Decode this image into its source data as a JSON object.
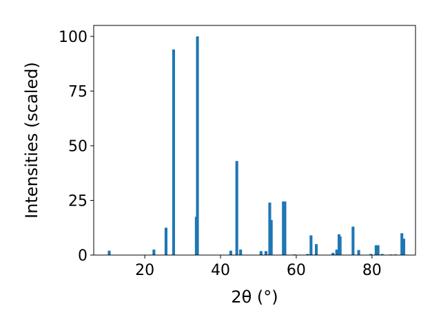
{
  "chart_data": {
    "type": "bar",
    "xlabel": "2θ (°)",
    "ylabel": "Intensities (scaled)",
    "xlim": [
      6.5,
      91.5
    ],
    "ylim": [
      0,
      105
    ],
    "xticks": [
      20,
      40,
      60,
      80
    ],
    "yticks": [
      0,
      25,
      50,
      75,
      100
    ],
    "grid": false,
    "bar_width_deg": 0.75,
    "bar_color": "#1f77b4",
    "x": [
      10.6,
      22.4,
      25.6,
      27.6,
      33.6,
      33.9,
      42.7,
      44.3,
      45.3,
      50.7,
      52.0,
      53.0,
      53.4,
      56.6,
      57.0,
      59.5,
      63.0,
      63.9,
      65.3,
      69.7,
      70.7,
      71.3,
      71.6,
      75.0,
      76.5,
      79.7,
      81.1,
      81.6,
      82.7,
      85.0,
      86.2,
      87.9,
      88.4
    ],
    "values": [
      2,
      2.5,
      12.5,
      94,
      17.5,
      100,
      2,
      43,
      2.5,
      1.8,
      1.8,
      24,
      16,
      24.5,
      24.5,
      0.3,
      0.5,
      9,
      5,
      1,
      2.5,
      9.5,
      8.5,
      13,
      2.3,
      0.5,
      4.5,
      4.5,
      0.5,
      0.3,
      0.3,
      10,
      7.5
    ]
  }
}
